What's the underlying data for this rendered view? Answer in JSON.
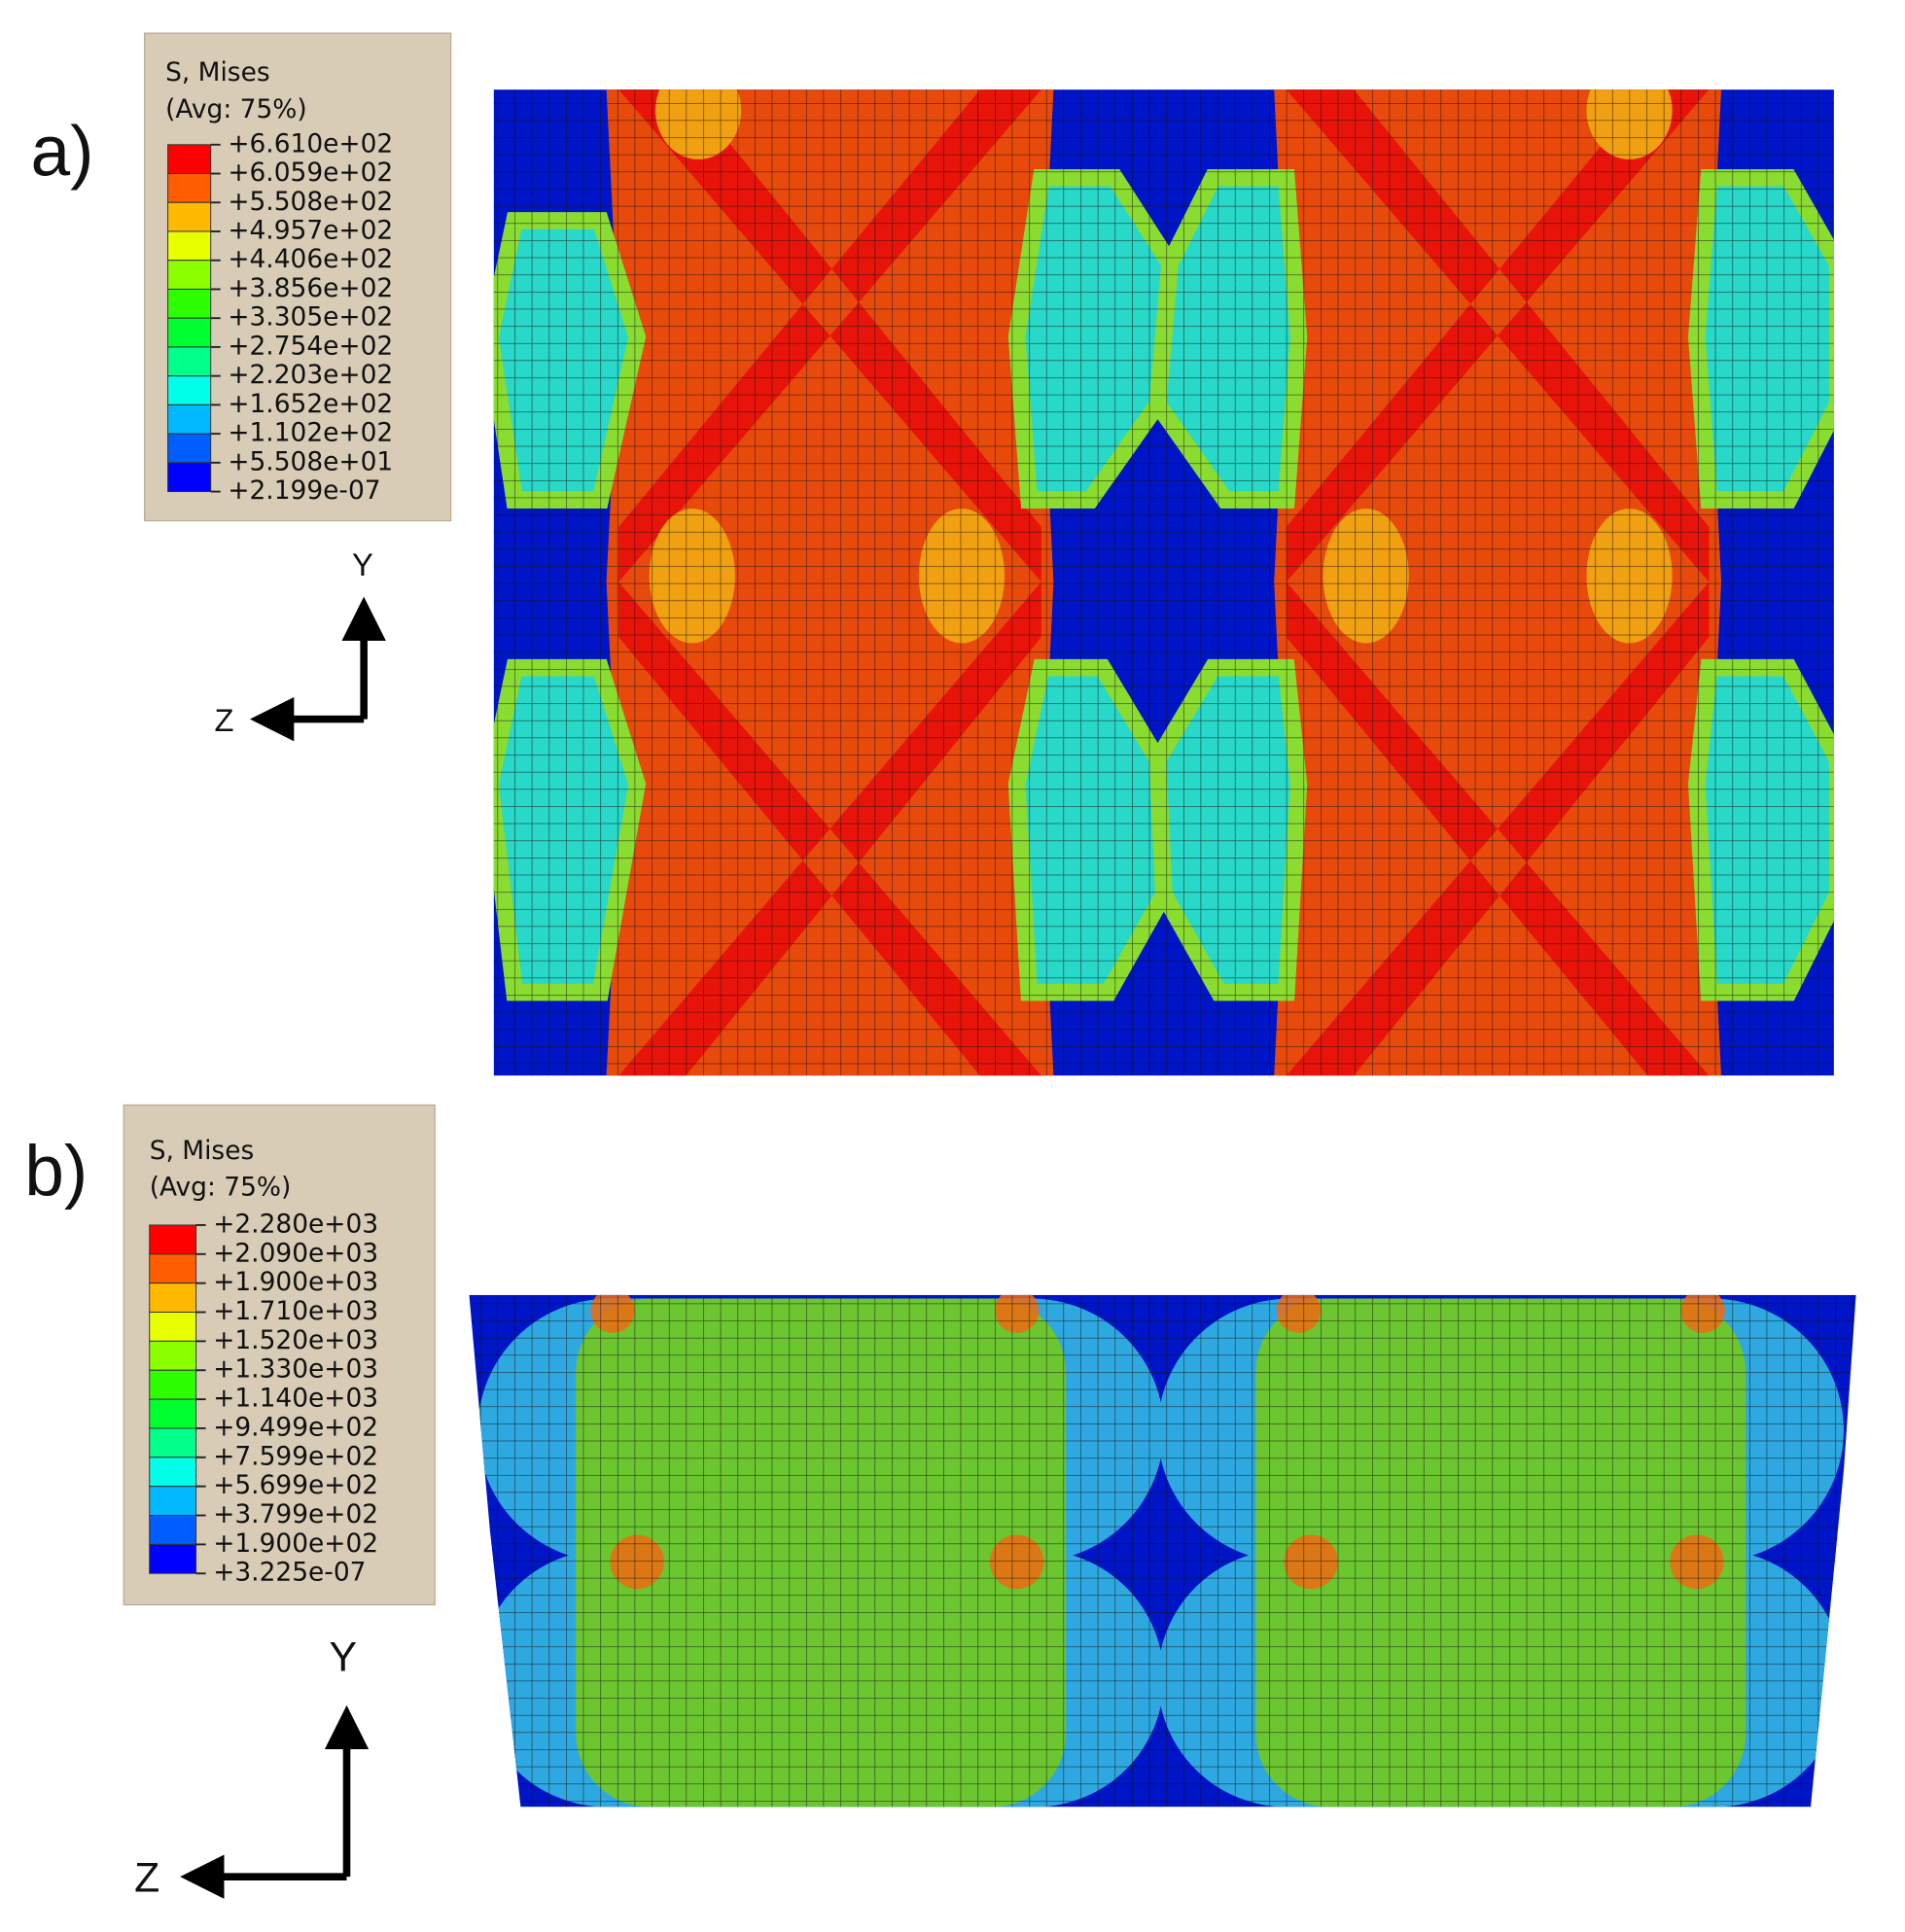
{
  "panels": [
    {
      "label": "a)",
      "legend": {
        "title": "S, Mises",
        "subtitle": "(Avg: 75%)",
        "values": [
          "+6.610e+02",
          "+6.059e+02",
          "+5.508e+02",
          "+4.957e+02",
          "+4.406e+02",
          "+3.856e+02",
          "+3.305e+02",
          "+2.754e+02",
          "+2.203e+02",
          "+1.652e+02",
          "+1.102e+02",
          "+5.508e+01",
          "+2.199e-07"
        ]
      },
      "axes": {
        "y": "Y",
        "z": "Z"
      }
    },
    {
      "label": "b)",
      "legend": {
        "title": "S, Mises",
        "subtitle": "(Avg: 75%)",
        "values": [
          "+2.280e+03",
          "+2.090e+03",
          "+1.900e+03",
          "+1.710e+03",
          "+1.520e+03",
          "+1.330e+03",
          "+1.140e+03",
          "+9.499e+02",
          "+7.599e+02",
          "+5.699e+02",
          "+3.799e+02",
          "+1.900e+02",
          "+3.225e-07"
        ]
      },
      "axes": {
        "y": "Y",
        "z": "Z"
      }
    }
  ]
}
